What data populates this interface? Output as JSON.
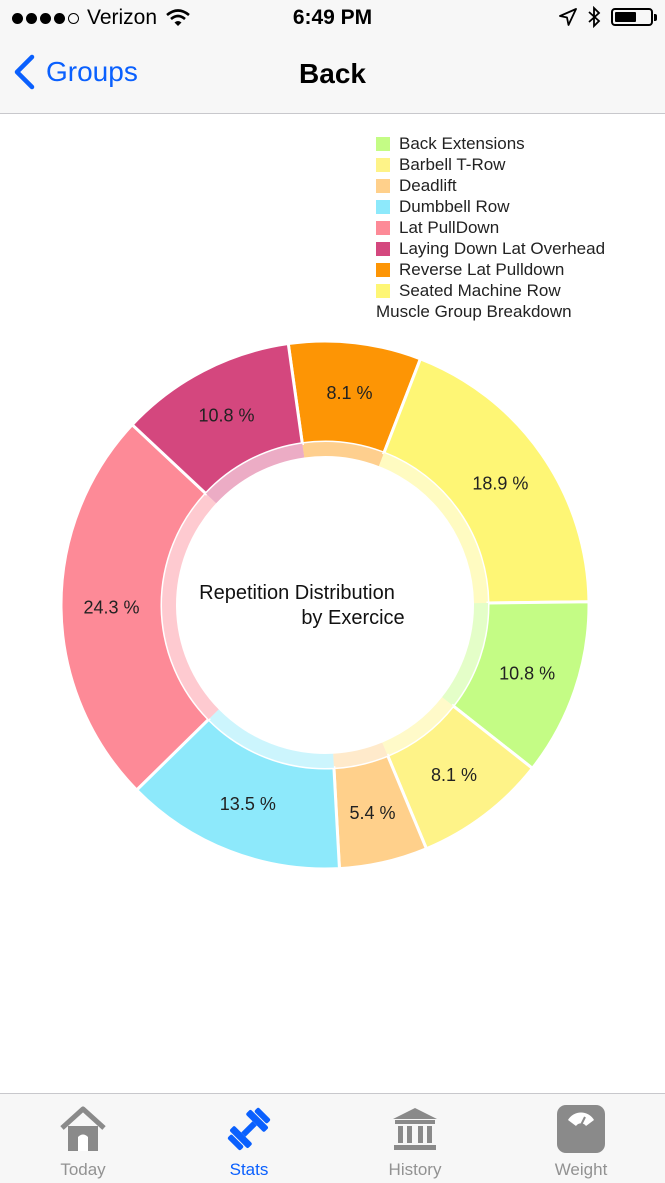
{
  "status_bar": {
    "carrier": "Verizon",
    "time": "6:49 PM",
    "battery_level": 0.58
  },
  "nav": {
    "back_label": "Groups",
    "title": "Back"
  },
  "legend": {
    "items": [
      {
        "label": "Back Extensions",
        "color": "#c4fc85"
      },
      {
        "label": "Barbell T-Row",
        "color": "#fef388"
      },
      {
        "label": "Deadlift",
        "color": "#ffd08b"
      },
      {
        "label": "Dumbbell Row",
        "color": "#8de9fb"
      },
      {
        "label": "Lat PullDown",
        "color": "#fd8a97"
      },
      {
        "label": "Laying Down Lat Overhead",
        "color": "#d4477e"
      },
      {
        "label": "Reverse Lat Pulldown",
        "color": "#fd9505"
      },
      {
        "label": "Seated Machine Row",
        "color": "#fef675"
      }
    ],
    "caption": "Muscle Group Breakdown"
  },
  "chart_data": {
    "type": "pie",
    "style": "donut",
    "center_text": [
      "Repetition Distribution",
      "by Exercice"
    ],
    "slices": [
      {
        "name": "Back Extensions",
        "value": 10.8,
        "label": "10.8 %",
        "color": "#c4fc85"
      },
      {
        "name": "Barbell T-Row",
        "value": 8.1,
        "label": "8.1 %",
        "color": "#fef388"
      },
      {
        "name": "Deadlift",
        "value": 5.4,
        "label": "5.4 %",
        "color": "#ffd08b"
      },
      {
        "name": "Dumbbell Row",
        "value": 13.5,
        "label": "13.5 %",
        "color": "#8de9fb"
      },
      {
        "name": "Lat PullDown",
        "value": 24.3,
        "label": "24.3 %",
        "color": "#fd8a97"
      },
      {
        "name": "Laying Down Lat Overhead",
        "value": 10.8,
        "label": "10.8 %",
        "color": "#d4477e"
      },
      {
        "name": "Reverse Lat Pulldown",
        "value": 8.1,
        "label": "8.1 %",
        "color": "#fd9505"
      },
      {
        "name": "Seated Machine Row",
        "value": 18.9,
        "label": "18.9 %",
        "color": "#fef675"
      }
    ]
  },
  "tabs": [
    {
      "label": "Today",
      "icon": "house-icon",
      "active": false
    },
    {
      "label": "Stats",
      "icon": "dumbbell-icon",
      "active": true
    },
    {
      "label": "History",
      "icon": "bank-icon",
      "active": false
    },
    {
      "label": "Weight",
      "icon": "scale-icon",
      "active": false
    }
  ]
}
